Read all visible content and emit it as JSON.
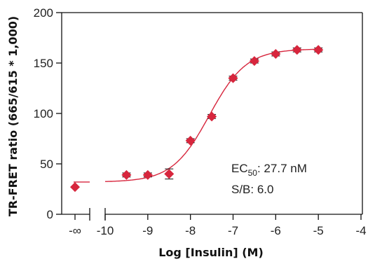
{
  "chart_data": {
    "type": "scatter",
    "xlabel": "Log [Insulin] (M)",
    "ylabel": "TR-FRET ratio (665/615 * 1,000)",
    "ylim": [
      0,
      200
    ],
    "xlim": [
      -10,
      -4
    ],
    "y_ticks": [
      "0",
      "50",
      "100",
      "150",
      "200"
    ],
    "x_ticks": [
      {
        "value": null,
        "label": "-∞"
      },
      {
        "value": -10,
        "label": "-10"
      },
      {
        "value": -9,
        "label": "-9"
      },
      {
        "value": -8,
        "label": "-8"
      },
      {
        "value": -7,
        "label": "-7"
      },
      {
        "value": -6,
        "label": "-6"
      },
      {
        "value": -5,
        "label": "-5"
      },
      {
        "value": -4,
        "label": "-4"
      }
    ],
    "axis_break": true,
    "grid": false,
    "marker_color": "#d7263d",
    "curve_color": "#d7263d",
    "points": [
      {
        "x": null,
        "y": 27,
        "err": 0
      },
      {
        "x": -9.5,
        "y": 39,
        "err": 2
      },
      {
        "x": -9.0,
        "y": 39,
        "err": 2
      },
      {
        "x": -8.5,
        "y": 40,
        "err": 5
      },
      {
        "x": -8.0,
        "y": 73,
        "err": 2
      },
      {
        "x": -7.5,
        "y": 97,
        "err": 2
      },
      {
        "x": -7.0,
        "y": 135,
        "err": 2
      },
      {
        "x": -6.5,
        "y": 152,
        "err": 2
      },
      {
        "x": -6.0,
        "y": 159,
        "err": 2
      },
      {
        "x": -5.5,
        "y": 163,
        "err": 2
      },
      {
        "x": -5.0,
        "y": 163,
        "err": 2
      }
    ],
    "fit": {
      "bottom": 32,
      "top": 164,
      "log_ec50": -7.558,
      "hill": 1.0
    },
    "annotations": {
      "ec50_prefix": "EC",
      "ec50_sub": "50",
      "ec50_value": ": 27.7 nM",
      "sb": "S/B: 6.0"
    }
  }
}
